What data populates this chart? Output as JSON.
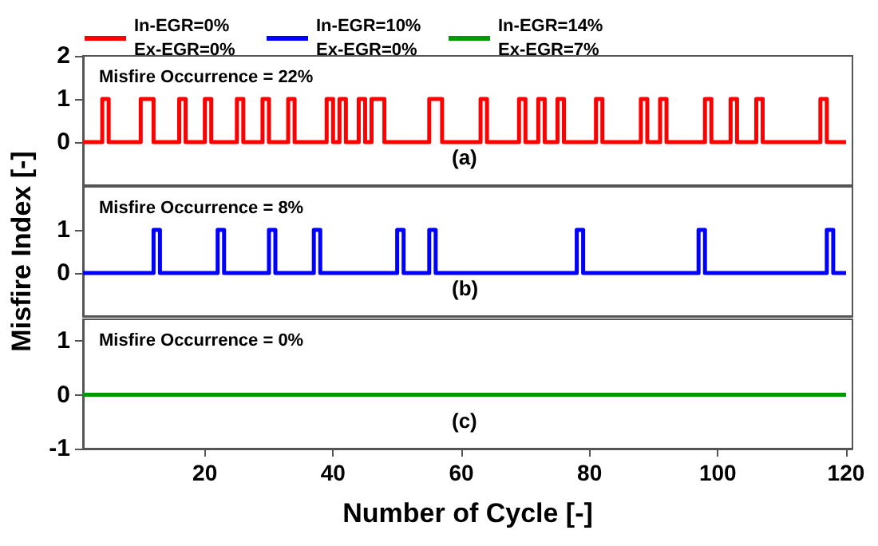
{
  "chart_data": [
    {
      "type": "step",
      "legend": "top",
      "tick_labels": "y",
      "grid": false,
      "xlim": [
        1,
        121
      ],
      "ylim": [
        -1,
        2
      ],
      "yticks": [
        0,
        1,
        2
      ],
      "annotations": [
        "Misfire Occurrence = 22%",
        "(a)"
      ],
      "series": [
        {
          "name": "In-EGR=0%\nEx-EGR=0%",
          "color": "#ff0000",
          "x": [
            1,
            4,
            5,
            10,
            12,
            16,
            17,
            20,
            21,
            25,
            26,
            29,
            30,
            33,
            34,
            39,
            40,
            41,
            42,
            44,
            45,
            46,
            48,
            55,
            57,
            63,
            64,
            69,
            70,
            72,
            73,
            75,
            76,
            81,
            82,
            88,
            89,
            91,
            92,
            98,
            99,
            102,
            103,
            106,
            107,
            116,
            117,
            120
          ],
          "values": [
            0,
            1,
            0,
            1,
            0,
            1,
            0,
            1,
            0,
            1,
            0,
            1,
            0,
            1,
            0,
            1,
            0,
            1,
            0,
            1,
            0,
            1,
            0,
            1,
            0,
            1,
            0,
            1,
            0,
            1,
            0,
            1,
            0,
            1,
            0,
            1,
            0,
            1,
            0,
            1,
            0,
            1,
            0,
            1,
            0,
            1,
            0,
            0
          ]
        }
      ]
    },
    {
      "type": "step",
      "legend": "top",
      "tick_labels": "y",
      "grid": false,
      "xlim": [
        1,
        121
      ],
      "ylim": [
        -1,
        2
      ],
      "yticks": [
        0,
        1
      ],
      "ylabel": "Misfire Index [-]",
      "annotations": [
        "Misfire Occurrence = 8%",
        "(b)"
      ],
      "series": [
        {
          "name": "In-EGR=10%\nEx-EGR=0%",
          "color": "#0000ff",
          "x": [
            1,
            12,
            13,
            22,
            23,
            30,
            31,
            37,
            38,
            50,
            51,
            55,
            56,
            78,
            79,
            97,
            98,
            117,
            118,
            120
          ],
          "values": [
            0,
            1,
            0,
            1,
            0,
            1,
            0,
            1,
            0,
            1,
            0,
            1,
            0,
            1,
            0,
            1,
            0,
            1,
            0,
            0
          ]
        }
      ]
    },
    {
      "type": "step",
      "legend": "top",
      "grid": false,
      "xlim": [
        1,
        121
      ],
      "xticks": [
        20,
        40,
        60,
        80,
        100,
        120
      ],
      "ylim": [
        -1,
        1.4
      ],
      "yticks": [
        -1,
        0,
        1
      ],
      "xlabel": "Number of Cycle [-]",
      "annotations": [
        "Misfire Occurrence = 0%",
        "(c)"
      ],
      "series": [
        {
          "name": "In-EGR=14%\nEx-EGR=7%",
          "color": "#009900",
          "x": [
            1,
            120
          ],
          "values": [
            0,
            0
          ]
        }
      ]
    }
  ]
}
